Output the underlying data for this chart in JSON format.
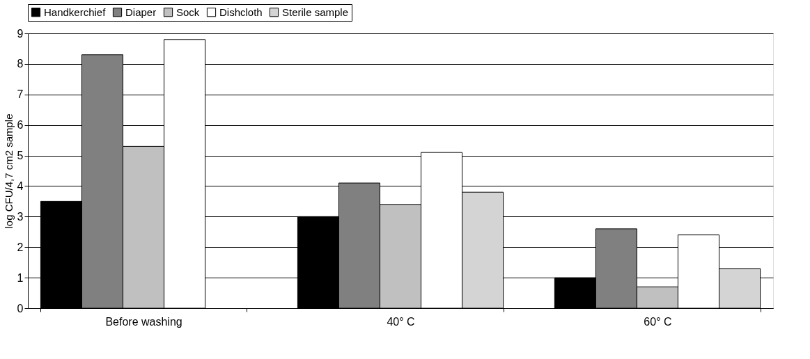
{
  "chart_data": {
    "type": "bar",
    "ylabel": "log CFU/4,7 cm2 sample",
    "categories": [
      "Before washing",
      "40° C",
      "60° C"
    ],
    "series": [
      {
        "name": "Handkerchief",
        "color": "#000000",
        "values": [
          3.5,
          3.0,
          1.0
        ]
      },
      {
        "name": "Diaper",
        "color": "#808080",
        "values": [
          8.3,
          4.1,
          2.6
        ]
      },
      {
        "name": "Sock",
        "color": "#c0c0c0",
        "values": [
          5.3,
          3.4,
          0.7
        ]
      },
      {
        "name": "Dishcloth",
        "color": "#ffffff",
        "values": [
          8.8,
          5.1,
          2.4
        ]
      },
      {
        "name": "Sterile sample",
        "color": "#d4d4d4",
        "values": [
          null,
          3.8,
          1.3
        ]
      }
    ],
    "ylim": [
      0,
      9
    ],
    "yticks": [
      0,
      1,
      2,
      3,
      4,
      5,
      6,
      7,
      8,
      9
    ],
    "grid": "y",
    "legend": "top"
  }
}
